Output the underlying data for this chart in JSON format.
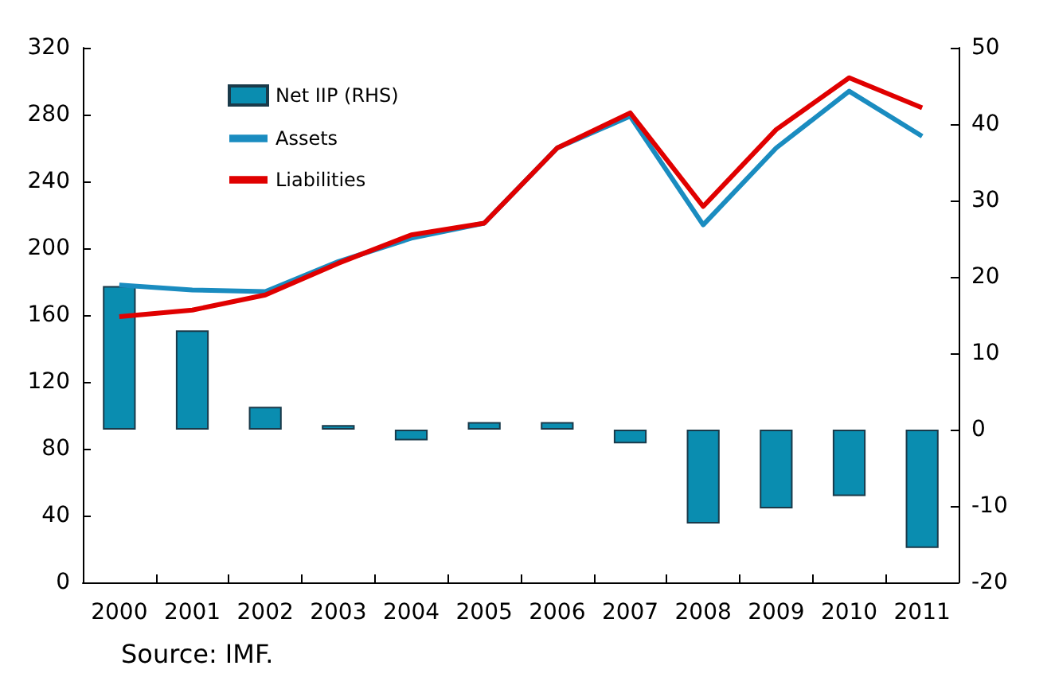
{
  "chart_data": {
    "type": "line",
    "categories": [
      "2000",
      "2001",
      "2002",
      "2003",
      "2004",
      "2005",
      "2006",
      "2007",
      "2008",
      "2009",
      "2010",
      "2011"
    ],
    "series": [
      {
        "name": "Net IIP (RHS)",
        "type": "bar",
        "axis": "y2",
        "color": "#0a8db0",
        "values": [
          18.8,
          13,
          3,
          0.6,
          -1.4,
          1,
          1,
          -1.8,
          -12.3,
          -10.3,
          -8.7,
          -15.5
        ]
      },
      {
        "name": "Assets",
        "color": "#1a8cc0",
        "values": [
          178,
          175,
          174,
          192,
          206,
          215,
          260,
          279,
          214,
          260,
          294,
          267
        ]
      },
      {
        "name": "Liabilities",
        "color": "#e00000",
        "values": [
          159,
          163,
          172,
          191,
          208,
          215,
          260,
          281,
          225,
          271,
          302,
          284
        ]
      }
    ],
    "ylim": [
      0,
      320
    ],
    "yticks": [
      0,
      40,
      80,
      120,
      160,
      200,
      240,
      280,
      320
    ],
    "y2lim": [
      -20,
      50
    ],
    "y2ticks": [
      -20,
      -10,
      0,
      10,
      20,
      30,
      40,
      50
    ],
    "legend": "top left",
    "grid": false,
    "marker": "none",
    "line_style": "solid",
    "annotations": [
      "Source: IMF."
    ]
  }
}
